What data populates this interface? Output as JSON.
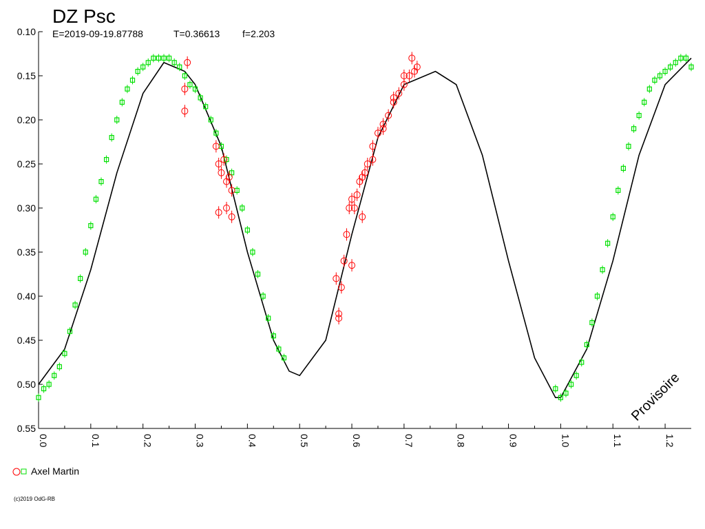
{
  "chart_data": {
    "type": "scatter",
    "title": "DZ Psc",
    "subtitle": {
      "epoch": "E=2019-09-19.87788",
      "period": "T=0.36613",
      "f": "f=2.203"
    },
    "xlabel": "",
    "ylabel": "",
    "xlim": [
      0.0,
      1.25
    ],
    "ylim": [
      0.55,
      0.1
    ],
    "y_inverted": true,
    "x_ticks": [
      "0.0",
      "0.1",
      "0.2",
      "0.3",
      "0.4",
      "0.5",
      "0.6",
      "0.7",
      "0.8",
      "0.9",
      "1.0",
      "1.1",
      "1.2"
    ],
    "x_tick_values": [
      0.0,
      0.1,
      0.2,
      0.3,
      0.4,
      0.5,
      0.6,
      0.7,
      0.8,
      0.9,
      1.0,
      1.1,
      1.2
    ],
    "y_ticks": [
      "0.10",
      "0.15",
      "0.20",
      "0.25",
      "0.30",
      "0.35",
      "0.40",
      "0.45",
      "0.50",
      "0.55"
    ],
    "y_tick_values": [
      0.1,
      0.15,
      0.2,
      0.25,
      0.3,
      0.35,
      0.4,
      0.45,
      0.5,
      0.55
    ],
    "watermark": "Provisoire",
    "legend": {
      "placement": "bottom-left",
      "entries": [
        "Axel Martin"
      ]
    },
    "model_curve": {
      "color": "#000000",
      "x": [
        0.0,
        0.05,
        0.1,
        0.15,
        0.2,
        0.24,
        0.28,
        0.3,
        0.35,
        0.4,
        0.45,
        0.48,
        0.5,
        0.55,
        0.6,
        0.65,
        0.7,
        0.76,
        0.8,
        0.85,
        0.9,
        0.95,
        0.99,
        1.0,
        1.05,
        1.1,
        1.15,
        1.2,
        1.25
      ],
      "y": [
        0.5,
        0.46,
        0.37,
        0.26,
        0.17,
        0.135,
        0.145,
        0.16,
        0.23,
        0.35,
        0.45,
        0.485,
        0.49,
        0.45,
        0.33,
        0.22,
        0.16,
        0.145,
        0.16,
        0.24,
        0.36,
        0.47,
        0.515,
        0.515,
        0.46,
        0.36,
        0.24,
        0.16,
        0.13
      ]
    },
    "series": [
      {
        "marker": "circle",
        "color": "#ff0000",
        "x": [
          0.28,
          0.28,
          0.285,
          0.34,
          0.345,
          0.35,
          0.355,
          0.36,
          0.365,
          0.37,
          0.345,
          0.36,
          0.37,
          0.57,
          0.575,
          0.58,
          0.585,
          0.59,
          0.595,
          0.6,
          0.605,
          0.61,
          0.615,
          0.62,
          0.625,
          0.63,
          0.64,
          0.65,
          0.66,
          0.67,
          0.68,
          0.69,
          0.7,
          0.71,
          0.72,
          0.725,
          0.575,
          0.6,
          0.62,
          0.64,
          0.66,
          0.68,
          0.7,
          0.715
        ],
        "y": [
          0.165,
          0.19,
          0.135,
          0.23,
          0.25,
          0.26,
          0.245,
          0.27,
          0.265,
          0.28,
          0.305,
          0.3,
          0.31,
          0.38,
          0.42,
          0.39,
          0.36,
          0.33,
          0.3,
          0.29,
          0.3,
          0.285,
          0.27,
          0.265,
          0.26,
          0.25,
          0.23,
          0.215,
          0.205,
          0.195,
          0.18,
          0.17,
          0.16,
          0.15,
          0.145,
          0.14,
          0.425,
          0.365,
          0.31,
          0.245,
          0.21,
          0.175,
          0.15,
          0.13
        ]
      },
      {
        "marker": "square",
        "color": "#00e000",
        "x": [
          0.0,
          0.01,
          0.02,
          0.03,
          0.04,
          0.05,
          0.06,
          0.07,
          0.08,
          0.09,
          0.1,
          0.11,
          0.12,
          0.13,
          0.14,
          0.15,
          0.16,
          0.17,
          0.18,
          0.19,
          0.2,
          0.21,
          0.22,
          0.23,
          0.24,
          0.25,
          0.26,
          0.27,
          0.28,
          0.29,
          0.3,
          0.31,
          0.32,
          0.33,
          0.34,
          0.35,
          0.36,
          0.37,
          0.38,
          0.39,
          0.4,
          0.41,
          0.42,
          0.43,
          0.44,
          0.45,
          0.46,
          0.47,
          0.99,
          1.0,
          1.01,
          1.02,
          1.03,
          1.04,
          1.05,
          1.06,
          1.07,
          1.08,
          1.09,
          1.1,
          1.11,
          1.12,
          1.13,
          1.14,
          1.15,
          1.16,
          1.17,
          1.18,
          1.19,
          1.2,
          1.21,
          1.22,
          1.23,
          1.24,
          1.25
        ],
        "y": [
          0.515,
          0.505,
          0.5,
          0.49,
          0.48,
          0.465,
          0.44,
          0.41,
          0.38,
          0.35,
          0.32,
          0.29,
          0.27,
          0.245,
          0.22,
          0.2,
          0.18,
          0.165,
          0.155,
          0.145,
          0.14,
          0.135,
          0.13,
          0.13,
          0.13,
          0.13,
          0.135,
          0.14,
          0.15,
          0.16,
          0.165,
          0.175,
          0.185,
          0.2,
          0.215,
          0.23,
          0.245,
          0.26,
          0.28,
          0.3,
          0.325,
          0.35,
          0.375,
          0.4,
          0.425,
          0.445,
          0.46,
          0.47,
          0.505,
          0.515,
          0.51,
          0.5,
          0.49,
          0.475,
          0.455,
          0.43,
          0.4,
          0.37,
          0.34,
          0.31,
          0.28,
          0.255,
          0.23,
          0.21,
          0.195,
          0.18,
          0.165,
          0.155,
          0.15,
          0.145,
          0.14,
          0.135,
          0.13,
          0.13,
          0.14
        ]
      }
    ]
  },
  "copyright": "(c)2019 OdG-RB"
}
